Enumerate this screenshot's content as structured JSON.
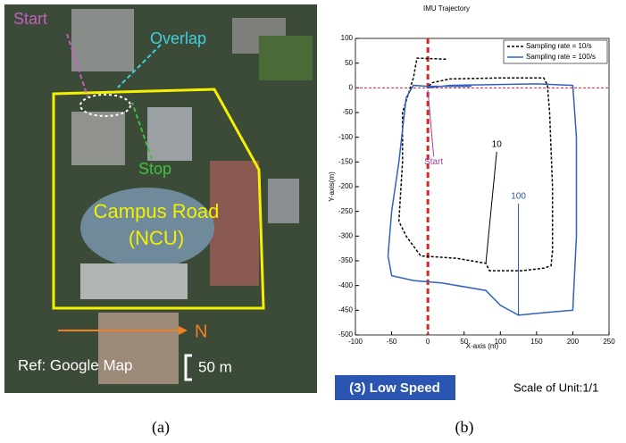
{
  "chart_data": {
    "type": "line",
    "title": "IMU Trajectory",
    "x_label": "X-axis (m)",
    "y_label": "Y-axis(m)",
    "xlim": [
      -100,
      250
    ],
    "xticks": [
      -100,
      -50,
      0,
      50,
      100,
      150,
      200,
      250
    ],
    "ylim": [
      -500,
      100
    ],
    "yticks": [
      -500,
      -450,
      -400,
      -350,
      -300,
      -250,
      -200,
      -150,
      -100,
      -50,
      0,
      50,
      100
    ],
    "reference_lines": {
      "x": 0,
      "y": 0,
      "color": "#e02020"
    },
    "legend": "upper right",
    "series": [
      {
        "name": "Sampling rate = 10/s",
        "color": "#000000",
        "dash": true,
        "x": [
          25,
          -15,
          -20,
          -35,
          -35,
          -40,
          -30,
          -10,
          40,
          80,
          85,
          130,
          160,
          170,
          172,
          172,
          168,
          165,
          160,
          100,
          30,
          5,
          0
        ],
        "values": [
          58,
          60,
          20,
          -50,
          -150,
          -270,
          -300,
          -340,
          -345,
          -355,
          -370,
          -370,
          -365,
          -360,
          -330,
          -200,
          -50,
          5,
          20,
          20,
          18,
          10,
          0
        ]
      },
      {
        "name": "Sampling rate = 100/s",
        "color": "#3060c0",
        "dash": false,
        "x": [
          0,
          30,
          150,
          200,
          205,
          205,
          200,
          160,
          125,
          100,
          80,
          20,
          -20,
          -50,
          -55,
          -50,
          -40,
          -30,
          -20,
          0,
          60
        ],
        "values": [
          0,
          5,
          8,
          5,
          -100,
          -300,
          -450,
          -455,
          -460,
          -440,
          -410,
          -395,
          -390,
          -380,
          -340,
          -250,
          -150,
          -20,
          5,
          3,
          3
        ]
      }
    ],
    "annotations": [
      "Start",
      "10",
      "100"
    ]
  },
  "map": {
    "start": "Start",
    "overlap": "Overlap",
    "stop": "Stop",
    "road": "Campus Road",
    "ncu": "(NCU)",
    "north": "N",
    "ref": "Ref: Google Map",
    "scale": "50 m"
  },
  "badge": "(3) Low Speed",
  "scale_note": "Scale of Unit:1/1",
  "captions": [
    "(a)",
    "(b)"
  ]
}
